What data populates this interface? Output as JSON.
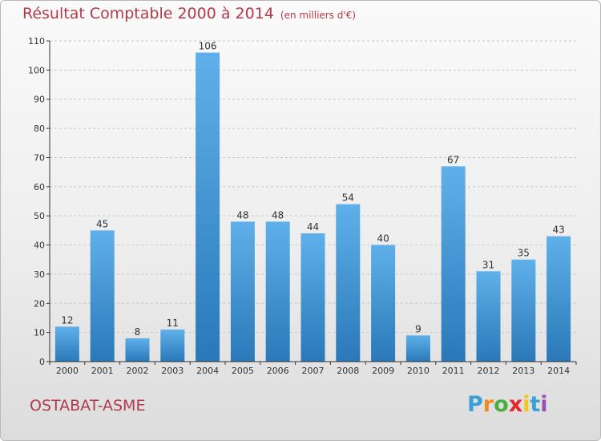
{
  "header": {
    "title": "Résultat Comptable 2000 à 2014",
    "unit": "(en milliers d'€)"
  },
  "footer": {
    "commune": "OSTABAT-ASME",
    "logo": {
      "letters": [
        "P",
        "r",
        "o",
        "x",
        "i",
        "t",
        "i"
      ],
      "colors": [
        "#3aa0d8",
        "#f08a1c",
        "#4cae3f",
        "#e2272e",
        "#f5c518",
        "#3aa0d8",
        "#9a4fb0"
      ]
    }
  },
  "colors": {
    "title": "#b33a4a",
    "bar_top": "#5fb0ea",
    "bar_bottom": "#2a78b8",
    "grid": "#c8c8c8",
    "axis": "#333333"
  },
  "chart_data": {
    "type": "bar",
    "categories": [
      "2000",
      "2001",
      "2002",
      "2003",
      "2004",
      "2005",
      "2006",
      "2007",
      "2008",
      "2009",
      "2010",
      "2011",
      "2012",
      "2013",
      "2014"
    ],
    "values": [
      12,
      45,
      8,
      11,
      106,
      48,
      48,
      44,
      54,
      40,
      9,
      67,
      31,
      35,
      43
    ],
    "ylim": [
      0,
      110
    ],
    "yticks": [
      0,
      10,
      20,
      30,
      40,
      50,
      60,
      70,
      80,
      90,
      100,
      110
    ],
    "grid": true,
    "data_labels": true
  }
}
